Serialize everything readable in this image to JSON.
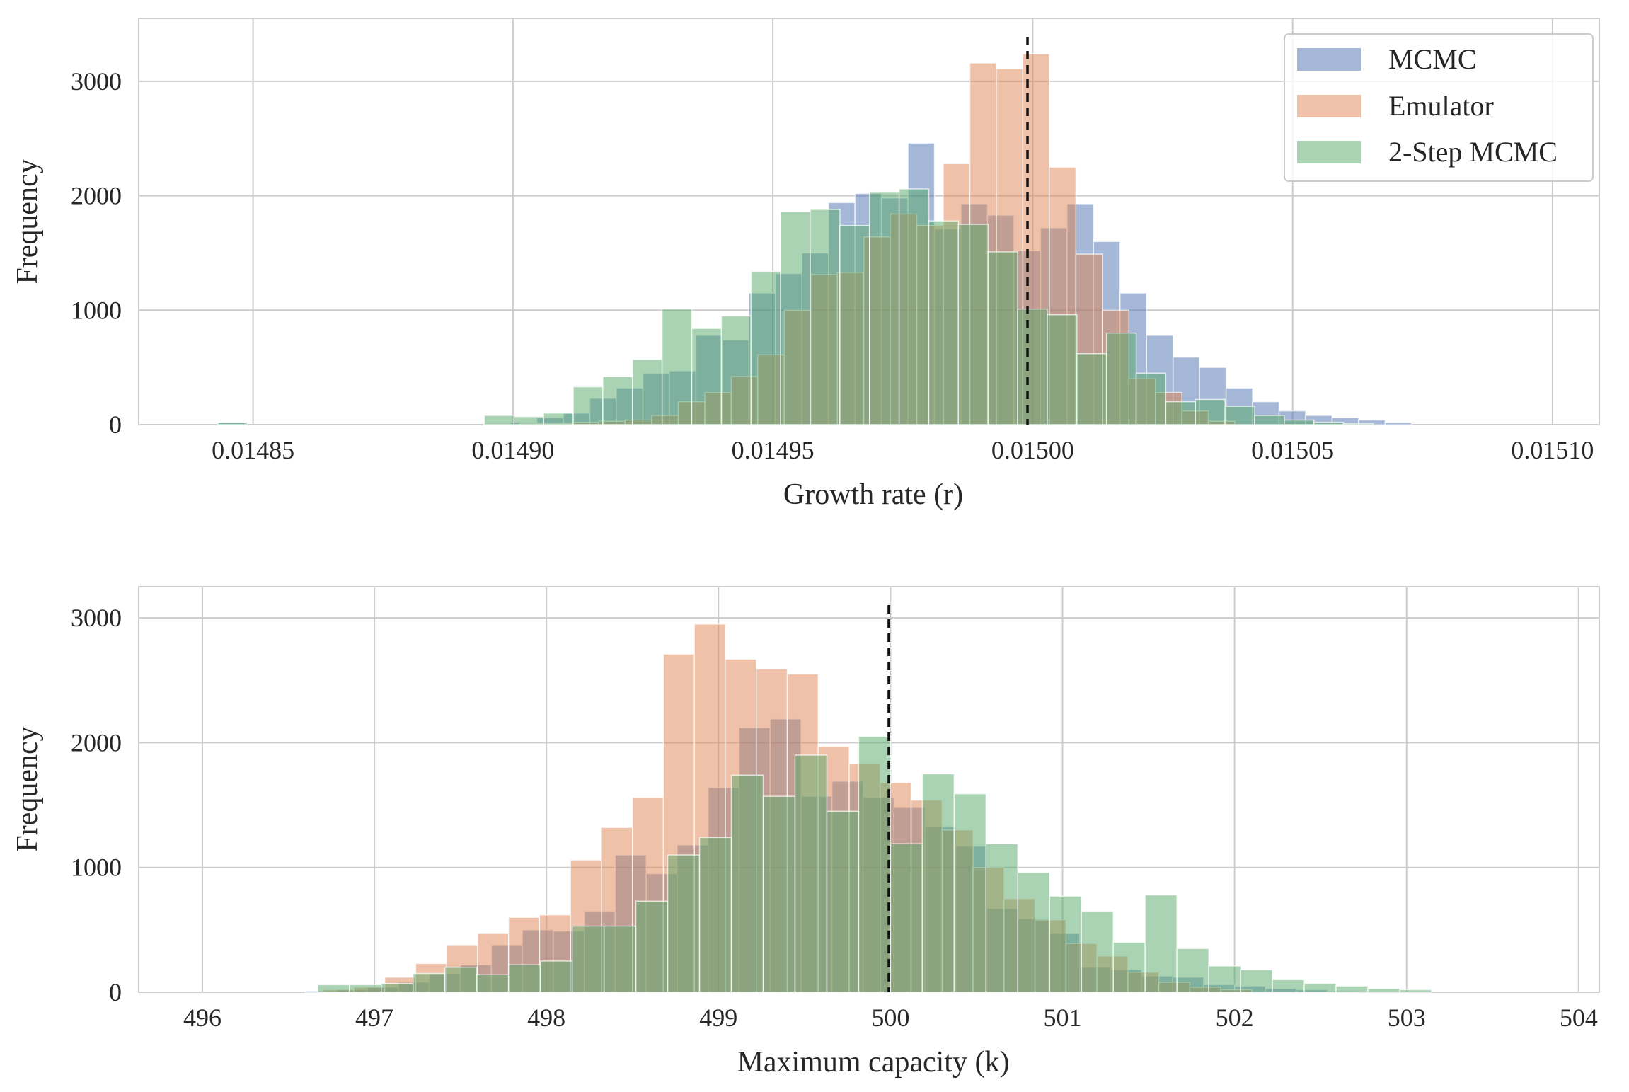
{
  "chart_data": [
    {
      "type": "histogram",
      "xlabel": "Growth rate (r)",
      "ylabel": "Frequency",
      "xlim": [
        0.014828,
        0.015109
      ],
      "ylim": [
        0,
        3550
      ],
      "xticks": [
        0.01485,
        0.0149,
        0.01495,
        0.015,
        0.01505,
        0.0151
      ],
      "xtick_labels": [
        "0.01485",
        "0.01490",
        "0.01495",
        "0.01500",
        "0.01505",
        "0.01510"
      ],
      "yticks": [
        0,
        1000,
        2000,
        3000
      ],
      "ytick_labels": [
        "0",
        "1000",
        "2000",
        "3000"
      ],
      "grid": true,
      "true_value": 0.014999,
      "legend": {
        "placement": "top-right",
        "entries": [
          "MCMC",
          "Emulator",
          "2-Step MCMC"
        ]
      },
      "series": [
        {
          "name": "MCMC",
          "color": "#4c72b0",
          "bin_start": 0.0148434,
          "bin_width": 5.1e-06,
          "values": [
            20,
            0,
            0,
            0,
            0,
            0,
            0,
            0,
            0,
            0,
            10,
            20,
            60,
            100,
            230,
            320,
            450,
            470,
            780,
            740,
            1150,
            1320,
            1500,
            1940,
            2020,
            1980,
            2460,
            1710,
            1930,
            1830,
            1520,
            1720,
            1930,
            1600,
            1150,
            780,
            590,
            500,
            320,
            200,
            120,
            80,
            60,
            40,
            20,
            0
          ]
        },
        {
          "name": "Emulator",
          "color": "#dd8452",
          "bin_start": 0.0149012,
          "bin_width": 5.1e-06,
          "values": [
            10,
            10,
            20,
            30,
            40,
            80,
            200,
            280,
            420,
            610,
            1000,
            1310,
            1330,
            1640,
            1840,
            1740,
            2280,
            3160,
            3110,
            3240,
            2250,
            1490,
            1000,
            400,
            280,
            120,
            30
          ]
        },
        {
          "name": "2-Step MCMC",
          "color": "#55a868",
          "bin_start": 0.0148432,
          "bin_width": 5.7e-06,
          "values": [
            20,
            0,
            0,
            0,
            0,
            0,
            0,
            0,
            0,
            80,
            70,
            100,
            330,
            420,
            570,
            1010,
            840,
            950,
            1340,
            1860,
            1880,
            1740,
            2030,
            2060,
            1780,
            1750,
            1510,
            1010,
            960,
            620,
            800,
            450,
            200,
            220,
            160,
            80,
            40,
            20,
            10
          ]
        }
      ]
    },
    {
      "type": "histogram",
      "xlabel": "Maximum capacity (k)",
      "ylabel": "Frequency",
      "xlim": [
        495.63,
        504.12
      ],
      "ylim": [
        0,
        3250
      ],
      "xticks": [
        496,
        497,
        498,
        499,
        500,
        501,
        502,
        503,
        504
      ],
      "xtick_labels": [
        "496",
        "497",
        "498",
        "499",
        "500",
        "501",
        "502",
        "503",
        "504"
      ],
      "yticks": [
        0,
        1000,
        2000,
        3000
      ],
      "ytick_labels": [
        "0",
        "1000",
        "2000",
        "3000"
      ],
      "grid": true,
      "true_value": 499.99,
      "series": [
        {
          "name": "MCMC",
          "color": "#4c72b0",
          "bin_start": 496.6,
          "bin_width": 0.18,
          "values": [
            10,
            20,
            40,
            80,
            150,
            220,
            380,
            500,
            490,
            650,
            1100,
            950,
            1180,
            1640,
            2120,
            2190,
            1570,
            1690,
            1560,
            1480,
            1330,
            1170,
            670,
            590,
            470,
            200,
            180,
            130,
            120,
            60,
            50,
            30,
            20,
            10
          ]
        },
        {
          "name": "Emulator",
          "color": "#dd8452",
          "bin_start": 496.7,
          "bin_width": 0.18,
          "values": [
            20,
            40,
            120,
            230,
            380,
            470,
            600,
            620,
            1060,
            1320,
            1560,
            2710,
            2950,
            2670,
            2590,
            2550,
            1970,
            1830,
            1680,
            1540,
            1300,
            1000,
            750,
            580,
            390,
            290,
            160,
            80,
            40,
            20
          ]
        },
        {
          "name": "2-Step MCMC",
          "color": "#55a868",
          "bin_start": 496.67,
          "bin_width": 0.185,
          "values": [
            60,
            60,
            70,
            150,
            200,
            140,
            220,
            250,
            530,
            530,
            730,
            1100,
            1240,
            1740,
            1570,
            1900,
            1450,
            2050,
            1190,
            1750,
            1590,
            1190,
            960,
            770,
            650,
            400,
            780,
            350,
            210,
            180,
            100,
            70,
            50,
            30,
            20
          ]
        }
      ]
    }
  ]
}
